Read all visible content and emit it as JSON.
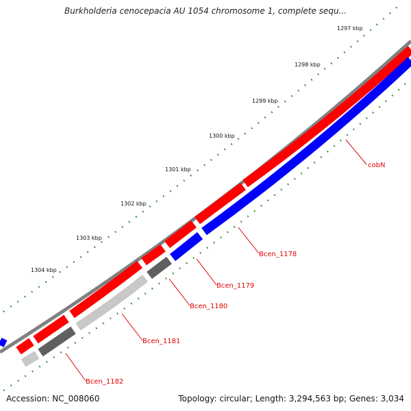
{
  "title": "Burkholderia cenocepacia AU 1054 chromosome 1, complete sequ...",
  "accession": "Accession: NC_008060",
  "summary": "Topology: circular; Length: 3,294,563 bp; Genes: 3,034",
  "colors": {
    "backbone": "#808080",
    "forward_gene": "#ff0000",
    "reverse_gene": "#0000ff",
    "pseudo_dark": "#606060",
    "pseudo_light": "#c8c8c8",
    "tick": "#1a7a1a",
    "label": "#e00000"
  },
  "scale_labels": [
    "1297 kbp",
    "1298 kbp",
    "1299 kbp",
    "1300 kbp",
    "1301 kbp",
    "1302 kbp",
    "1303 kbp",
    "1304 kbp"
  ],
  "gene_labels": [
    "cobN",
    "Bcen_1178",
    "Bcen_1179",
    "Bcen_1180",
    "Bcen_1181",
    "Bcen_1182"
  ]
}
